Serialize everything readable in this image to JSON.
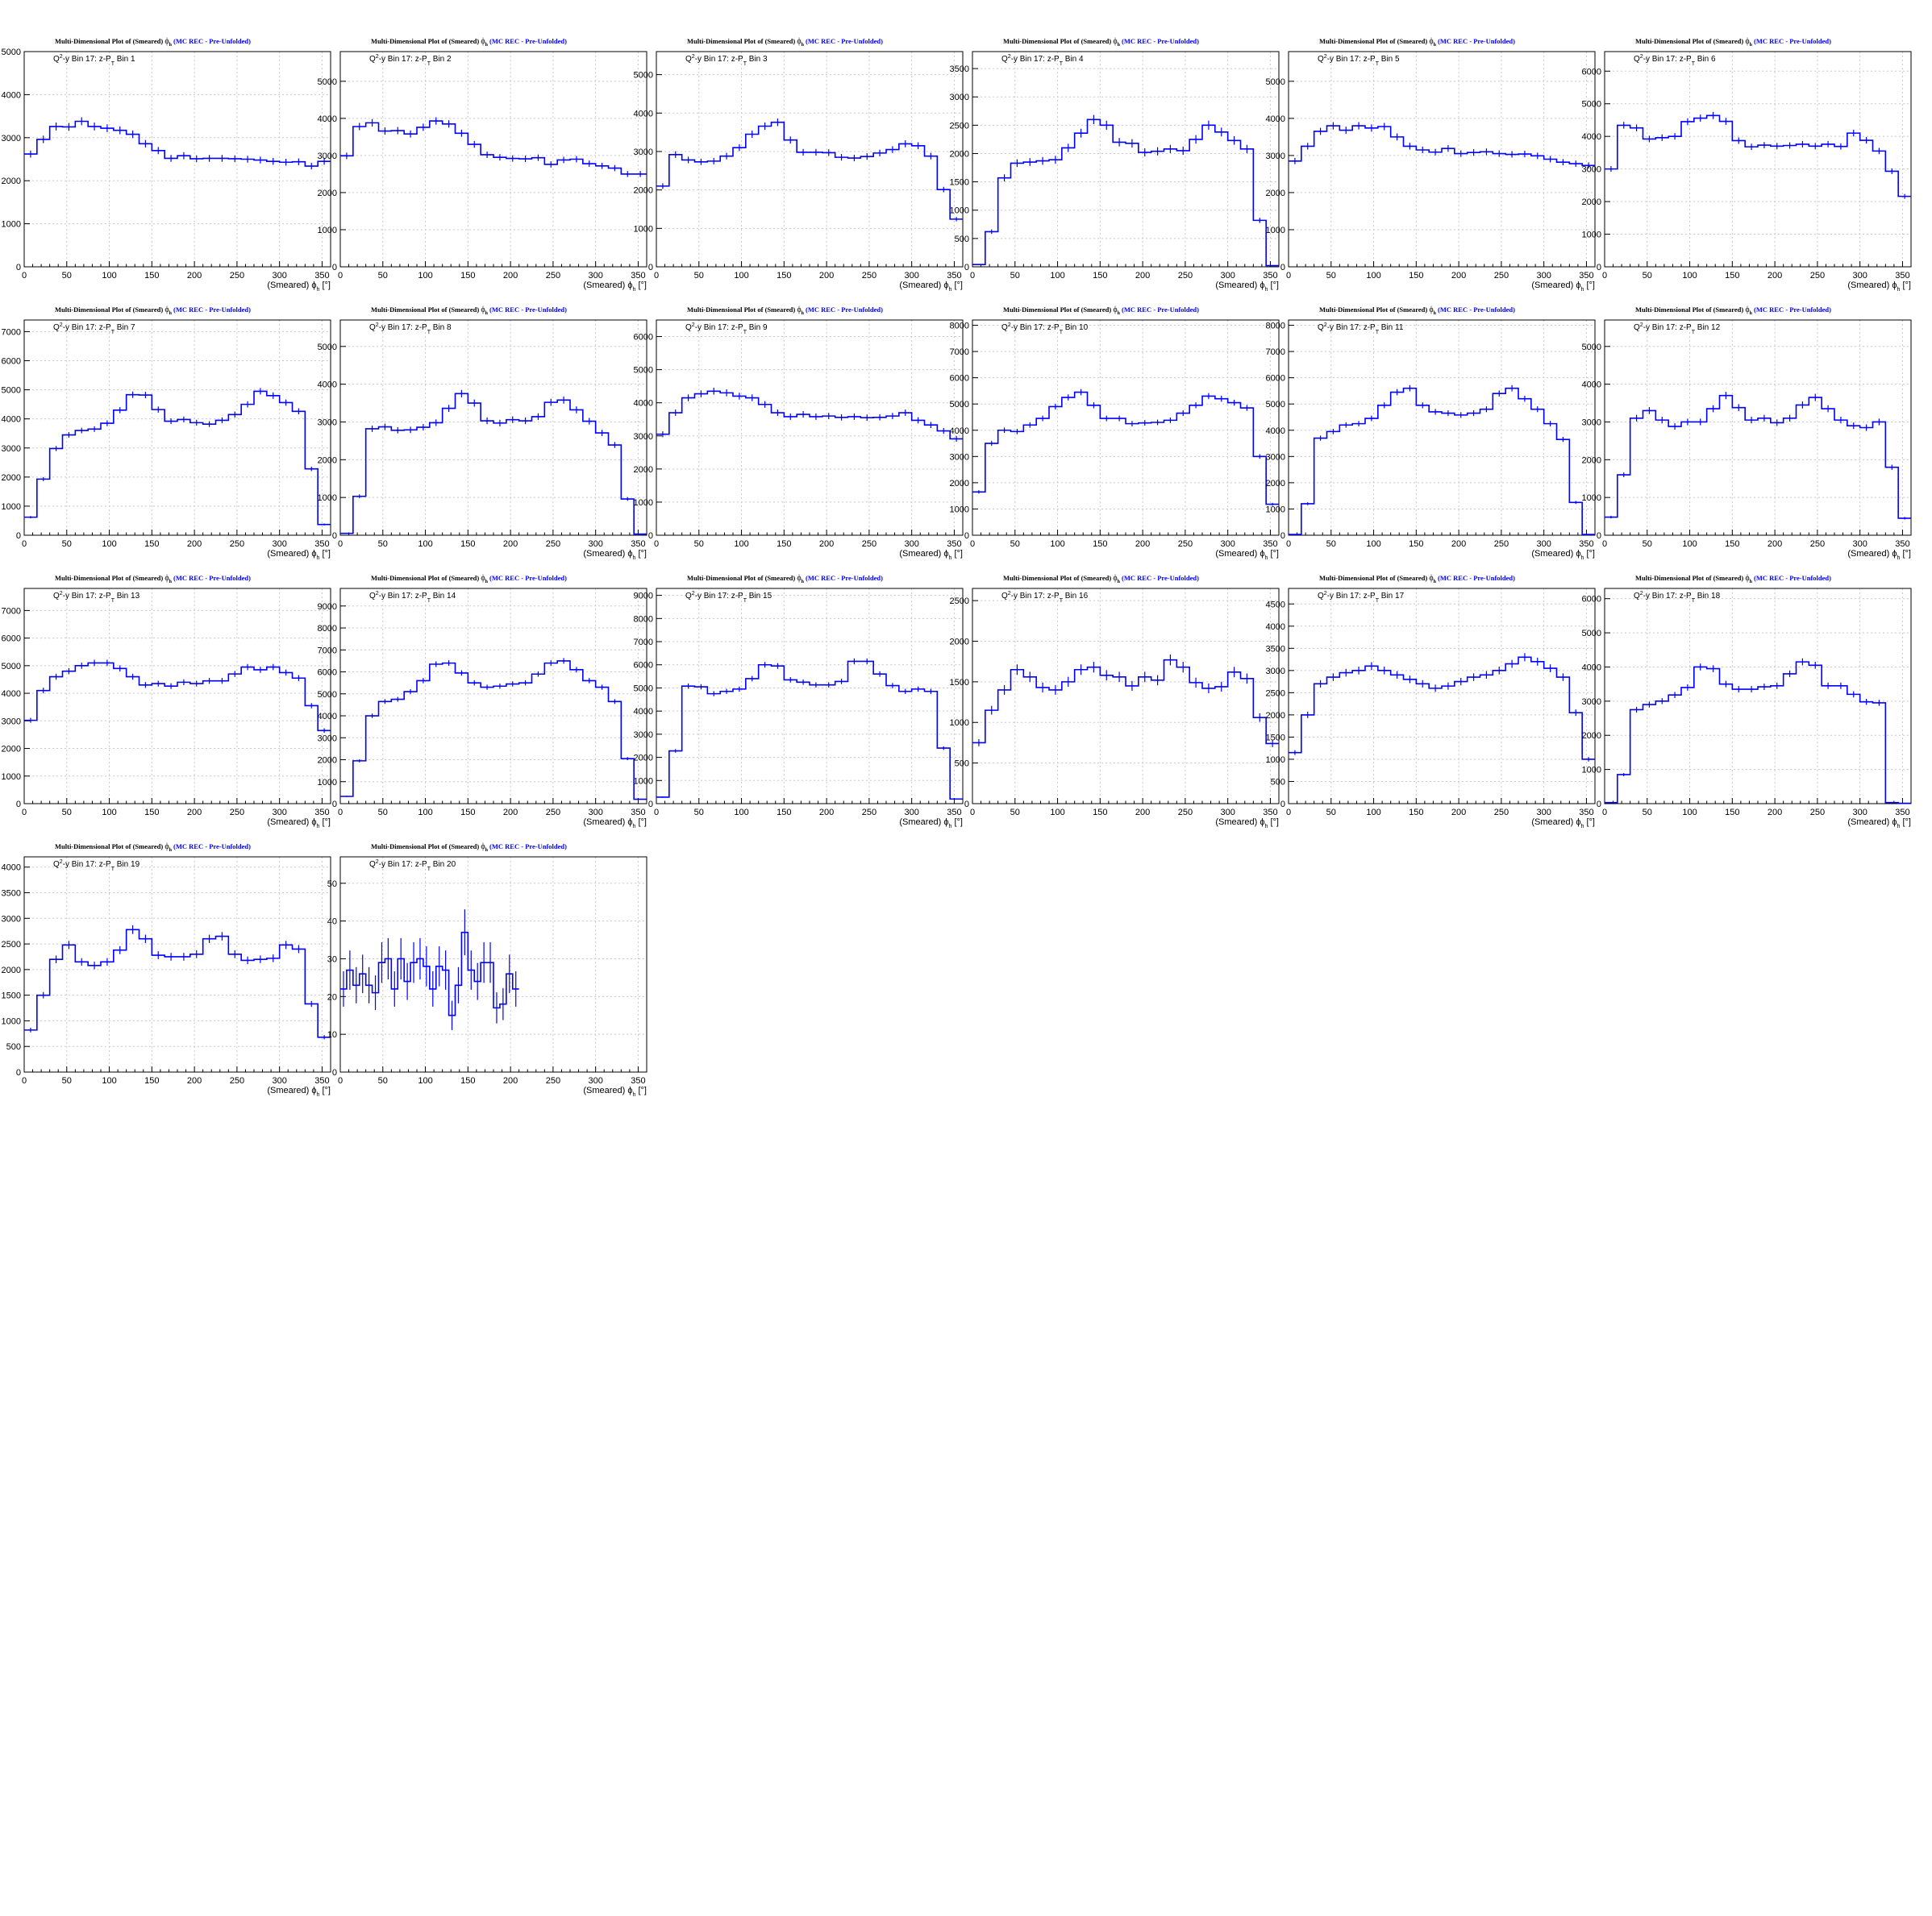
{
  "page": {
    "background": "#ffffff",
    "hist_color": "#0000ff",
    "axis_color": "#000000",
    "grid_color": "#c8c8c8"
  },
  "common": {
    "title_main": "Multi-Dimensional Plot of (Smeared)",
    "title_phi": "ϕ",
    "title_phi_sub": "h",
    "title_tag": "(MC REC - Pre-Unfolded)",
    "label_prefix": "Q",
    "label_prefix_sup": "2",
    "label_mid": "-y Bin 17: z-P",
    "label_mid_sub": "T",
    "xlabel": "(Smeared) ϕ",
    "xlabel_sub": "h",
    "xlabel_unit": " [°]",
    "xlim": [
      0,
      360
    ],
    "xticks": [
      0,
      50,
      100,
      150,
      200,
      250,
      300,
      350
    ]
  },
  "chart_data": [
    {
      "type": "bar",
      "bin_label": "Bin 1",
      "xlim": [
        0,
        360
      ],
      "ylim": [
        0,
        5000
      ],
      "yticks": [
        0,
        1000,
        2000,
        3000,
        4000,
        5000
      ],
      "bin_width": 15,
      "values": [
        2620,
        2960,
        3260,
        3250,
        3380,
        3260,
        3220,
        3170,
        3080,
        2860,
        2700,
        2520,
        2580,
        2510,
        2520,
        2520,
        2510,
        2500,
        2480,
        2450,
        2430,
        2440,
        2340,
        2450
      ]
    },
    {
      "type": "bar",
      "bin_label": "Bin 2",
      "xlim": [
        0,
        360
      ],
      "ylim": [
        0,
        5800
      ],
      "yticks": [
        0,
        1000,
        2000,
        3000,
        4000,
        5000
      ],
      "bin_width": 15,
      "values": [
        2990,
        3780,
        3880,
        3660,
        3670,
        3580,
        3760,
        3930,
        3850,
        3600,
        3300,
        3020,
        2950,
        2920,
        2910,
        2940,
        2760,
        2880,
        2900,
        2780,
        2720,
        2660,
        2500,
        2500
      ]
    },
    {
      "type": "bar",
      "bin_label": "Bin 3",
      "xlim": [
        0,
        360
      ],
      "ylim": [
        0,
        5600
      ],
      "yticks": [
        0,
        1000,
        2000,
        3000,
        4000,
        5000
      ],
      "bin_width": 15,
      "values": [
        2100,
        2920,
        2780,
        2730,
        2750,
        2880,
        3100,
        3450,
        3660,
        3760,
        3300,
        2980,
        2980,
        2970,
        2850,
        2830,
        2870,
        2960,
        3050,
        3200,
        3150,
        2880,
        2010,
        1240
      ]
    },
    {
      "type": "bar",
      "bin_label": "Bin 4",
      "xlim": [
        0,
        360
      ],
      "ylim": [
        0,
        3800
      ],
      "yticks": [
        0,
        500,
        1000,
        1500,
        2000,
        2500,
        3000,
        3500
      ],
      "bin_width": 15,
      "values": [
        40,
        620,
        1570,
        1830,
        1850,
        1870,
        1890,
        2100,
        2360,
        2600,
        2500,
        2200,
        2180,
        2020,
        2040,
        2080,
        2050,
        2250,
        2500,
        2380,
        2230,
        2080,
        820,
        20
      ]
    },
    {
      "type": "bar",
      "bin_label": "Bin 5",
      "xlim": [
        0,
        360
      ],
      "ylim": [
        0,
        5800
      ],
      "yticks": [
        0,
        1000,
        2000,
        3000,
        4000,
        5000
      ],
      "bin_width": 15,
      "values": [
        2850,
        3250,
        3650,
        3800,
        3680,
        3800,
        3740,
        3780,
        3500,
        3250,
        3150,
        3090,
        3190,
        3050,
        3080,
        3100,
        3050,
        3030,
        3040,
        2990,
        2900,
        2820,
        2780,
        2730
      ]
    },
    {
      "type": "bar",
      "bin_label": "Bin 6",
      "xlim": [
        0,
        360
      ],
      "ylim": [
        0,
        6600
      ],
      "yticks": [
        0,
        1000,
        2000,
        3000,
        4000,
        5000,
        6000
      ],
      "bin_width": 15,
      "values": [
        3000,
        4340,
        4260,
        3920,
        3960,
        4000,
        4450,
        4560,
        4640,
        4460,
        3870,
        3680,
        3730,
        3700,
        3720,
        3760,
        3700,
        3760,
        3690,
        4100,
        3880,
        3550,
        2930,
        2160
      ]
    },
    {
      "type": "bar",
      "bin_label": "Bin 7",
      "xlim": [
        0,
        360
      ],
      "ylim": [
        0,
        7400
      ],
      "yticks": [
        0,
        1000,
        2000,
        3000,
        4000,
        5000,
        6000,
        7000
      ],
      "bin_width": 15,
      "values": [
        620,
        1930,
        2980,
        3450,
        3600,
        3650,
        3850,
        4300,
        4830,
        4820,
        4320,
        3920,
        3980,
        3870,
        3820,
        3950,
        4150,
        4500,
        4950,
        4800,
        4560,
        4260,
        2280,
        370
      ]
    },
    {
      "type": "bar",
      "bin_label": "Bin 8",
      "xlim": [
        0,
        360
      ],
      "ylim": [
        0,
        5700
      ],
      "yticks": [
        0,
        1000,
        2000,
        3000,
        4000,
        5000
      ],
      "bin_width": 15,
      "values": [
        50,
        1030,
        2820,
        2870,
        2780,
        2790,
        2860,
        2980,
        3360,
        3750,
        3500,
        3030,
        2970,
        3060,
        3030,
        3140,
        3520,
        3580,
        3320,
        3020,
        2710,
        2390,
        960,
        30
      ]
    },
    {
      "type": "bar",
      "bin_label": "Bin 9",
      "xlim": [
        0,
        360
      ],
      "ylim": [
        0,
        6500
      ],
      "yticks": [
        0,
        1000,
        2000,
        3000,
        4000,
        5000,
        6000
      ],
      "bin_width": 15,
      "values": [
        3050,
        3700,
        4150,
        4270,
        4350,
        4300,
        4200,
        4150,
        3950,
        3700,
        3580,
        3650,
        3580,
        3600,
        3560,
        3580,
        3550,
        3560,
        3600,
        3700,
        3470,
        3330,
        3150,
        2910
      ]
    },
    {
      "type": "bar",
      "bin_label": "Bin 10",
      "xlim": [
        0,
        360
      ],
      "ylim": [
        0,
        8200
      ],
      "yticks": [
        0,
        1000,
        2000,
        3000,
        4000,
        5000,
        6000,
        7000,
        8000
      ],
      "bin_width": 15,
      "values": [
        1650,
        3500,
        4000,
        3950,
        4200,
        4450,
        4900,
        5250,
        5450,
        4950,
        4450,
        4450,
        4250,
        4280,
        4300,
        4380,
        4650,
        4950,
        5300,
        5200,
        5050,
        4850,
        3000,
        1180
      ]
    },
    {
      "type": "bar",
      "bin_label": "Bin 11",
      "xlim": [
        0,
        360
      ],
      "ylim": [
        0,
        8200
      ],
      "yticks": [
        0,
        1000,
        2000,
        3000,
        4000,
        5000,
        6000,
        7000,
        8000
      ],
      "bin_width": 15,
      "values": [
        30,
        1200,
        3700,
        3950,
        4200,
        4250,
        4450,
        4950,
        5450,
        5600,
        4950,
        4700,
        4650,
        4580,
        4650,
        4800,
        5400,
        5600,
        5200,
        4800,
        4250,
        3650,
        1250,
        30
      ]
    },
    {
      "type": "bar",
      "bin_label": "Bin 12",
      "xlim": [
        0,
        360
      ],
      "ylim": [
        0,
        5700
      ],
      "yticks": [
        0,
        1000,
        2000,
        3000,
        4000,
        5000
      ],
      "bin_width": 15,
      "values": [
        480,
        1600,
        3100,
        3300,
        3050,
        2880,
        3000,
        3000,
        3350,
        3700,
        3380,
        3050,
        3100,
        2980,
        3100,
        3450,
        3650,
        3350,
        3050,
        2900,
        2850,
        3000,
        1800,
        450
      ]
    },
    {
      "type": "bar",
      "bin_label": "Bin 13",
      "xlim": [
        0,
        360
      ],
      "ylim": [
        0,
        7800
      ],
      "yticks": [
        0,
        1000,
        2000,
        3000,
        4000,
        5000,
        6000,
        7000
      ],
      "bin_width": 15,
      "values": [
        3020,
        4100,
        4600,
        4800,
        5000,
        5100,
        5100,
        4900,
        4600,
        4300,
        4350,
        4260,
        4400,
        4350,
        4450,
        4450,
        4700,
        4950,
        4850,
        4950,
        4750,
        4550,
        3550,
        2650
      ]
    },
    {
      "type": "bar",
      "bin_label": "Bin 14",
      "xlim": [
        0,
        360
      ],
      "ylim": [
        0,
        9800
      ],
      "yticks": [
        0,
        1000,
        2000,
        3000,
        4000,
        5000,
        6000,
        7000,
        8000,
        9000
      ],
      "bin_width": 15,
      "values": [
        330,
        1950,
        4000,
        4650,
        4750,
        5100,
        5600,
        6350,
        6400,
        5950,
        5500,
        5300,
        5350,
        5450,
        5500,
        5900,
        6400,
        6500,
        6100,
        5600,
        5300,
        4650,
        2050,
        200
      ]
    },
    {
      "type": "bar",
      "bin_label": "Bin 15",
      "xlim": [
        0,
        360
      ],
      "ylim": [
        0,
        9300
      ],
      "yticks": [
        0,
        1000,
        2000,
        3000,
        4000,
        5000,
        6000,
        7000,
        8000,
        9000
      ],
      "bin_width": 15,
      "values": [
        280,
        2280,
        5080,
        5050,
        4750,
        4850,
        4950,
        5400,
        6000,
        5950,
        5350,
        5250,
        5130,
        5130,
        5280,
        6150,
        6150,
        5600,
        5100,
        4850,
        4950,
        4850,
        2400,
        200
      ]
    },
    {
      "type": "bar",
      "bin_label": "Bin 16",
      "xlim": [
        0,
        360
      ],
      "ylim": [
        0,
        2650
      ],
      "yticks": [
        0,
        500,
        1000,
        1500,
        2000,
        2500
      ],
      "bin_width": 15,
      "values": [
        750,
        1150,
        1400,
        1650,
        1560,
        1430,
        1400,
        1500,
        1650,
        1680,
        1580,
        1560,
        1450,
        1560,
        1520,
        1770,
        1680,
        1490,
        1420,
        1440,
        1620,
        1540,
        1060,
        740
      ]
    },
    {
      "type": "bar",
      "bin_label": "Bin 17",
      "xlim": [
        0,
        360
      ],
      "ylim": [
        0,
        4850
      ],
      "yticks": [
        0,
        500,
        1000,
        1500,
        2000,
        2500,
        3000,
        3500,
        4000,
        4500
      ],
      "bin_width": 15,
      "values": [
        1150,
        2000,
        2700,
        2850,
        2950,
        3000,
        3100,
        3000,
        2900,
        2800,
        2700,
        2600,
        2650,
        2750,
        2850,
        2900,
        3000,
        3150,
        3300,
        3200,
        3050,
        2850,
        2050,
        1000
      ]
    },
    {
      "type": "bar",
      "bin_label": "Bin 18",
      "xlim": [
        0,
        360
      ],
      "ylim": [
        0,
        6300
      ],
      "yticks": [
        0,
        1000,
        2000,
        3000,
        4000,
        5000,
        6000
      ],
      "bin_width": 15,
      "values": [
        30,
        850,
        2750,
        2900,
        3000,
        3180,
        3400,
        4000,
        3950,
        3500,
        3350,
        3350,
        3420,
        3450,
        3800,
        4150,
        4050,
        3450,
        3450,
        3200,
        2980,
        2950,
        30,
        10
      ]
    },
    {
      "type": "bar",
      "bin_label": "Bin 19",
      "xlim": [
        0,
        360
      ],
      "ylim": [
        0,
        4200
      ],
      "yticks": [
        0,
        500,
        1000,
        1500,
        2000,
        2500,
        3000,
        3500,
        4000
      ],
      "bin_width": 15,
      "values": [
        820,
        1500,
        2200,
        2480,
        2150,
        2080,
        2150,
        2380,
        2780,
        2600,
        2280,
        2250,
        2250,
        2300,
        2600,
        2650,
        2300,
        2180,
        2200,
        2220,
        2480,
        2400,
        1330,
        680
      ]
    },
    {
      "type": "bar",
      "bin_label": "Bin 20",
      "xlim": [
        0,
        360
      ],
      "ylim": [
        0,
        57
      ],
      "yticks": [
        0,
        10,
        20,
        30,
        40,
        50
      ],
      "bin_width": 7.5,
      "error_bars": true,
      "values": [
        22,
        27,
        23,
        26,
        23,
        21,
        29,
        30,
        22,
        30,
        24,
        29,
        30,
        28,
        22,
        28,
        27,
        15,
        23,
        37,
        27,
        24,
        29,
        29,
        17,
        18,
        26,
        22
      ]
    }
  ]
}
